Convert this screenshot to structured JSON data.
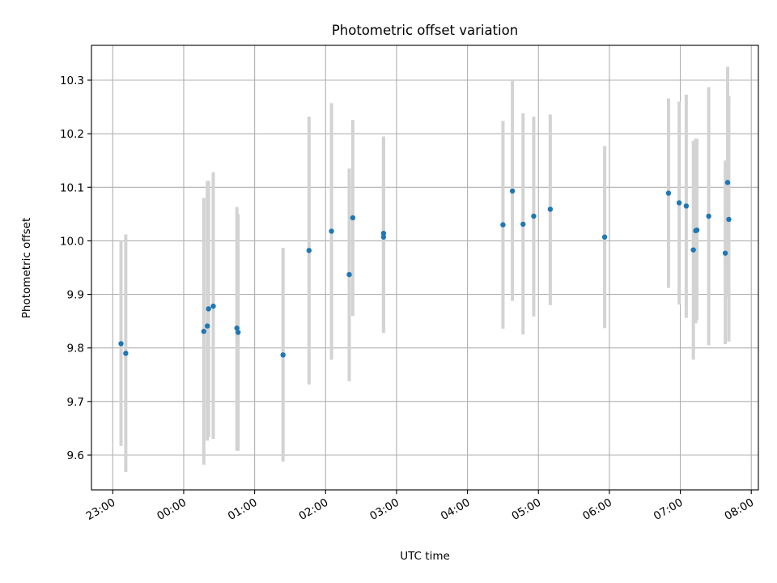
{
  "chart_data": {
    "type": "scatter",
    "title": "Photometric offset variation",
    "xlabel": "UTC time",
    "ylabel": "Photometric offset",
    "xlim": [
      "22:42",
      "08:06"
    ],
    "ylim": [
      9.535,
      10.365
    ],
    "x_ticks": [
      "23:00",
      "00:00",
      "01:00",
      "02:00",
      "03:00",
      "04:00",
      "05:00",
      "06:00",
      "07:00",
      "08:00"
    ],
    "y_ticks": [
      9.6,
      9.7,
      9.8,
      9.9,
      10.0,
      10.1,
      10.2,
      10.3
    ],
    "grid": true,
    "colors": {
      "points": "#1f77b4",
      "error_bars": "#d3d3d3"
    },
    "points": [
      {
        "x": "23:07",
        "y": 9.808,
        "ylow": 9.617,
        "yhigh": 10.0
      },
      {
        "x": "23:11",
        "y": 9.79,
        "ylow": 9.568,
        "yhigh": 10.012
      },
      {
        "x": "00:17",
        "y": 9.831,
        "ylow": 9.582,
        "yhigh": 10.08
      },
      {
        "x": "00:20",
        "y": 9.841,
        "ylow": 9.627,
        "yhigh": 10.112
      },
      {
        "x": "00:21",
        "y": 9.873,
        "ylow": 9.633,
        "yhigh": 10.112
      },
      {
        "x": "00:25",
        "y": 9.878,
        "ylow": 9.63,
        "yhigh": 10.128
      },
      {
        "x": "00:45",
        "y": 9.837,
        "ylow": 9.608,
        "yhigh": 10.063
      },
      {
        "x": "00:46",
        "y": 9.829,
        "ylow": 9.608,
        "yhigh": 10.05
      },
      {
        "x": "01:24",
        "y": 9.787,
        "ylow": 9.588,
        "yhigh": 9.987
      },
      {
        "x": "01:46",
        "y": 9.982,
        "ylow": 9.732,
        "yhigh": 10.232
      },
      {
        "x": "02:05",
        "y": 10.018,
        "ylow": 9.778,
        "yhigh": 10.257
      },
      {
        "x": "02:20",
        "y": 9.937,
        "ylow": 9.738,
        "yhigh": 10.135
      },
      {
        "x": "02:23",
        "y": 10.043,
        "ylow": 9.86,
        "yhigh": 10.226
      },
      {
        "x": "02:49",
        "y": 10.014,
        "ylow": 9.833,
        "yhigh": 10.195
      },
      {
        "x": "02:49",
        "y": 10.007,
        "ylow": 9.828,
        "yhigh": 10.19
      },
      {
        "x": "04:30",
        "y": 10.03,
        "ylow": 9.836,
        "yhigh": 10.224
      },
      {
        "x": "04:38",
        "y": 10.093,
        "ylow": 9.888,
        "yhigh": 10.3
      },
      {
        "x": "04:47",
        "y": 10.031,
        "ylow": 9.825,
        "yhigh": 10.238
      },
      {
        "x": "04:56",
        "y": 10.046,
        "ylow": 9.859,
        "yhigh": 10.232
      },
      {
        "x": "05:10",
        "y": 10.059,
        "ylow": 9.88,
        "yhigh": 10.236
      },
      {
        "x": "05:56",
        "y": 10.007,
        "ylow": 9.837,
        "yhigh": 10.177
      },
      {
        "x": "06:50",
        "y": 10.089,
        "ylow": 9.912,
        "yhigh": 10.266
      },
      {
        "x": "06:59",
        "y": 10.071,
        "ylow": 9.881,
        "yhigh": 10.26
      },
      {
        "x": "07:05",
        "y": 10.065,
        "ylow": 9.856,
        "yhigh": 10.273
      },
      {
        "x": "07:11",
        "y": 9.983,
        "ylow": 9.778,
        "yhigh": 10.187
      },
      {
        "x": "07:13",
        "y": 10.019,
        "ylow": 9.846,
        "yhigh": 10.191
      },
      {
        "x": "07:14",
        "y": 10.02,
        "ylow": 9.852,
        "yhigh": 10.19
      },
      {
        "x": "07:24",
        "y": 10.046,
        "ylow": 9.805,
        "yhigh": 10.287
      },
      {
        "x": "07:38",
        "y": 9.977,
        "ylow": 9.807,
        "yhigh": 10.15
      },
      {
        "x": "07:40",
        "y": 10.109,
        "ylow": 9.895,
        "yhigh": 10.325
      },
      {
        "x": "07:41",
        "y": 10.04,
        "ylow": 9.812,
        "yhigh": 10.27
      }
    ]
  }
}
